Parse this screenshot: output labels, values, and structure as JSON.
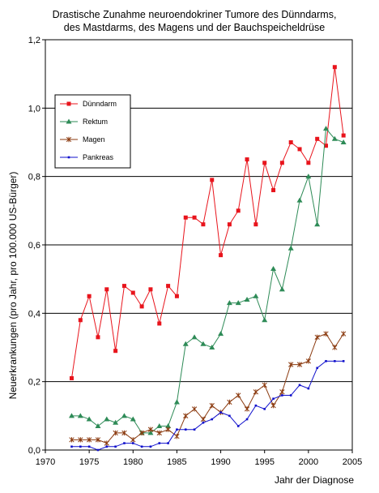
{
  "chart_data": {
    "type": "line",
    "title": "Drastische Zunahme neuroendokriner Tumore des Dünndarms,",
    "subtitle": "des Mastdarms, des Magens und der Bauchspeicheldrüse",
    "xlabel": "Jahr der Diagnose",
    "ylabel": "Neuerkrankungen (pro Jahr, pro 100.000 US-Bürger)",
    "xlim": [
      1970,
      2005
    ],
    "ylim": [
      0,
      1.2
    ],
    "x_ticks": [
      "1970",
      "1975",
      "1980",
      "1985",
      "1990",
      "1995",
      "2000",
      "2005"
    ],
    "y_ticks": [
      "0,0",
      "0,2",
      "0,4",
      "0,6",
      "0,8",
      "1,0",
      "1,2"
    ],
    "grid": "horizontal",
    "legend_position": "left",
    "x": [
      1973,
      1974,
      1975,
      1976,
      1977,
      1978,
      1979,
      1980,
      1981,
      1982,
      1983,
      1984,
      1985,
      1986,
      1987,
      1988,
      1989,
      1990,
      1991,
      1992,
      1993,
      1994,
      1995,
      1996,
      1997,
      1998,
      1999,
      2000,
      2001,
      2002,
      2003,
      2004
    ],
    "series": [
      {
        "name": "Dünndarm",
        "color": "#e8141c",
        "marker": "square",
        "values": [
          0.21,
          0.38,
          0.45,
          0.33,
          0.47,
          0.29,
          0.48,
          0.46,
          0.42,
          0.47,
          0.37,
          0.48,
          0.45,
          0.68,
          0.68,
          0.66,
          0.79,
          0.57,
          0.66,
          0.7,
          0.85,
          0.66,
          0.84,
          0.76,
          0.84,
          0.9,
          0.88,
          0.84,
          0.91,
          0.89,
          1.12,
          0.92
        ]
      },
      {
        "name": "Rektum",
        "color": "#2e8b57",
        "marker": "triangle",
        "values": [
          0.1,
          0.1,
          0.09,
          0.07,
          0.09,
          0.08,
          0.1,
          0.09,
          0.05,
          0.05,
          0.07,
          0.07,
          0.14,
          0.31,
          0.33,
          0.31,
          0.3,
          0.34,
          0.43,
          0.43,
          0.44,
          0.45,
          0.38,
          0.53,
          0.47,
          0.59,
          0.73,
          0.8,
          0.66,
          0.94,
          0.91,
          0.9
        ]
      },
      {
        "name": "Magen",
        "color": "#8b3a0f",
        "marker": "star",
        "values": [
          0.03,
          0.03,
          0.03,
          0.03,
          0.02,
          0.05,
          0.05,
          0.03,
          0.05,
          0.06,
          0.05,
          0.06,
          0.04,
          0.1,
          0.12,
          0.09,
          0.13,
          0.11,
          0.14,
          0.16,
          0.12,
          0.17,
          0.19,
          0.13,
          0.17,
          0.25,
          0.25,
          0.26,
          0.33,
          0.34,
          0.3,
          0.34
        ]
      },
      {
        "name": "Pankreas",
        "color": "#1010cc",
        "marker": "dot",
        "values": [
          0.01,
          0.01,
          0.01,
          0.0,
          0.01,
          0.01,
          0.02,
          0.02,
          0.01,
          0.01,
          0.02,
          0.02,
          0.06,
          0.06,
          0.06,
          0.08,
          0.09,
          0.11,
          0.1,
          0.07,
          0.09,
          0.13,
          0.12,
          0.15,
          0.16,
          0.16,
          0.19,
          0.18,
          0.24,
          0.26,
          0.26,
          0.26
        ]
      }
    ]
  }
}
